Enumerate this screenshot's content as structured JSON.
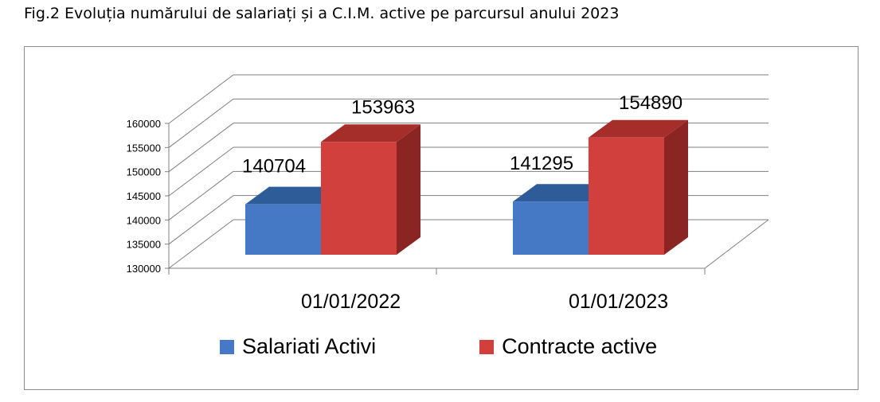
{
  "title": "Fig.2 Evoluția numărului de salariați și a C.I.M. active pe parcursul anului 2023",
  "colors": {
    "series1": "#4579c6",
    "series1_top": "#2e5c99",
    "series2": "#d1403d",
    "series2_top": "#a52e2b",
    "series2_side": "#8b2524",
    "series1_side": "#2f5a94",
    "grid": "#7f7f7f"
  },
  "chart_data": {
    "type": "bar",
    "style": "3d-clustered-column",
    "categories": [
      "01/01/2022",
      "01/01/2023"
    ],
    "series": [
      {
        "name": "Salariati Activi",
        "values": [
          140704,
          141295
        ],
        "color": "#4579c6"
      },
      {
        "name": "Contracte active",
        "values": [
          153963,
          154890
        ],
        "color": "#d1403d"
      }
    ],
    "ylim": [
      130000,
      160000
    ],
    "yticks": [
      "160000",
      "155000",
      "150000",
      "145000",
      "140000",
      "135000",
      "130000"
    ],
    "data_labels": [
      "140704",
      "141295",
      "153963",
      "154890"
    ],
    "legend_position": "bottom",
    "grid": true
  }
}
